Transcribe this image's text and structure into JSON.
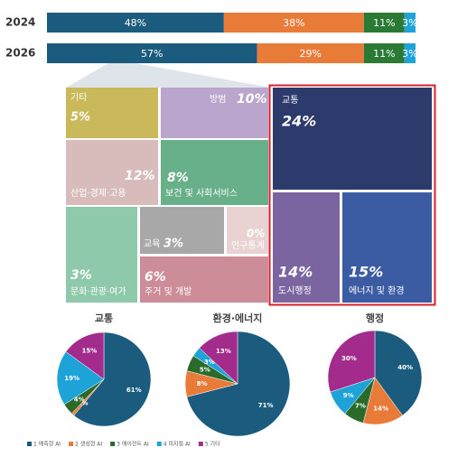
{
  "chart_data": [
    {
      "type": "stacked-bar",
      "categories": [
        "2024",
        "2026"
      ],
      "xlim": [
        0,
        100
      ],
      "series": [
        {
          "color": "#1b5c7e",
          "values": [
            48,
            57
          ],
          "value_labels": [
            "48%",
            "57%"
          ]
        },
        {
          "color": "#e97b39",
          "values": [
            38,
            29
          ],
          "value_labels": [
            "38%",
            "29%"
          ]
        },
        {
          "color": "#2a7a36",
          "values": [
            11,
            11
          ],
          "value_labels": [
            "11%",
            "11%"
          ]
        },
        {
          "color": "#1ea3d9",
          "values": [
            3,
            3
          ],
          "value_labels": [
            "3%",
            "3%"
          ]
        }
      ]
    },
    {
      "type": "treemap",
      "categories": [
        "기타",
        "방범",
        "산업·경제·고용",
        "보건 및 사회서비스",
        "교육",
        "인구통계",
        "문화·관광·여가",
        "주거 및 개발",
        "교통",
        "도시행정",
        "에너지 및 환경"
      ],
      "values": [
        5,
        10,
        12,
        8,
        3,
        0,
        3,
        6,
        24,
        14,
        15
      ],
      "value_labels": [
        "5%",
        "10%",
        "12%",
        "8%",
        "3%",
        "0%",
        "3%",
        "6%",
        "24%",
        "14%",
        "15%"
      ],
      "colors": [
        "#c9b95b",
        "#baa5cd",
        "#d8bcbc",
        "#68b08a",
        "#a8a8a8",
        "#e9d2d2",
        "#8fc9ab",
        "#cc8d98",
        "#2c3b6c",
        "#7a65a1",
        "#3b5ba2"
      ]
    },
    {
      "type": "pie",
      "categories": [
        "1 예측형 AI",
        "2 생성형 AI",
        "3 에이전트 AI",
        "4 피지컬 AI",
        "5 기타"
      ],
      "colors": [
        "#1b5c7e",
        "#e97b39",
        "#2a6a2a",
        "#1ea3d9",
        "#a32b8c"
      ],
      "pies": [
        {
          "title": "교통",
          "values": [
            61,
            1,
            4,
            19,
            15
          ],
          "value_labels": [
            "61%",
            "1%",
            "4%",
            "19%",
            "15%"
          ]
        },
        {
          "title": "환경·에너지",
          "values": [
            71,
            8,
            5,
            3,
            13
          ],
          "value_labels": [
            "71%",
            "8%",
            "5%",
            "3%",
            "13%"
          ]
        },
        {
          "title": "행정",
          "values": [
            40,
            14,
            7,
            9,
            30
          ],
          "value_labels": [
            "40%",
            "14%",
            "7%",
            "9%",
            "30%"
          ]
        }
      ]
    }
  ]
}
